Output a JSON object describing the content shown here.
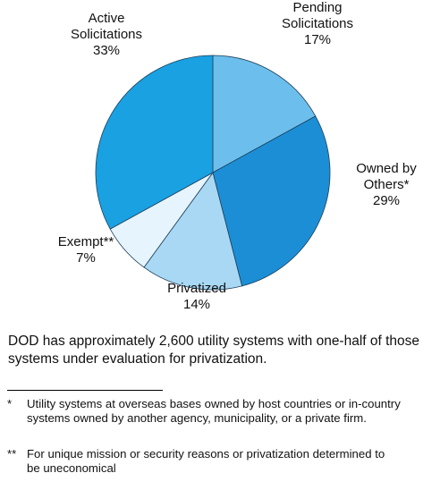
{
  "chart_data": {
    "type": "pie",
    "categories": [
      "Pending Solicitations",
      "Owned by Others*",
      "Privatized",
      "Exempt**",
      "Active Solicitations"
    ],
    "values": [
      17,
      29,
      14,
      7,
      33
    ],
    "value_labels": [
      "17%",
      "29%",
      "14%",
      "7%",
      "33%"
    ],
    "colors": [
      "#6cbfec",
      "#1b8ed6",
      "#a8d8f4",
      "#e6f4fd",
      "#19a1e2"
    ]
  },
  "caption": "DOD has approximately 2,600 utility systems with one-half of those systems under evaluation for privatization.",
  "footnotes": [
    {
      "marker": "*",
      "text": "Utility systems at overseas bases owned by host countries or in-country systems owned by another agency, municipality, or a private firm."
    },
    {
      "marker": "**",
      "text": "For unique mission or security reasons or privatization determined to be uneconomical"
    }
  ]
}
